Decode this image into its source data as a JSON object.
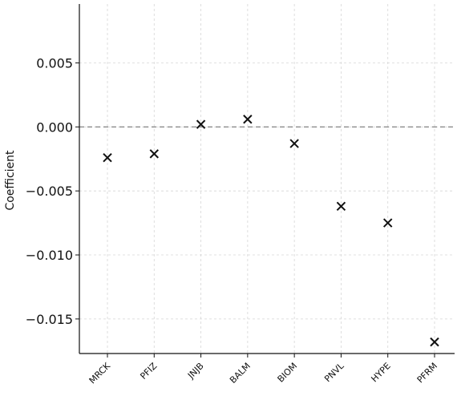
{
  "chart_data": {
    "type": "scatter",
    "title": "",
    "xlabel": "",
    "ylabel": "Coefficient",
    "categories": [
      "MRCK",
      "PFIZ",
      "JNJB",
      "BALM",
      "BIOM",
      "PNVL",
      "HYPE",
      "PFRM"
    ],
    "values": [
      -0.0024,
      -0.0021,
      0.0002,
      0.0006,
      -0.0013,
      -0.0062,
      -0.0075,
      -0.0168
    ],
    "ylim": [
      -0.0177,
      0.0096
    ],
    "yticks": [
      0.005,
      0.0,
      -0.005,
      -0.01,
      -0.015
    ],
    "ytick_labels": [
      "0.005",
      "0.000",
      "−0.005",
      "−0.010",
      "−0.015"
    ],
    "reference_line": 0.0,
    "marker": "x",
    "marker_color": "#111111",
    "grid": true,
    "grid_color": "#d6d6d6",
    "reference_line_color": "#777777"
  }
}
